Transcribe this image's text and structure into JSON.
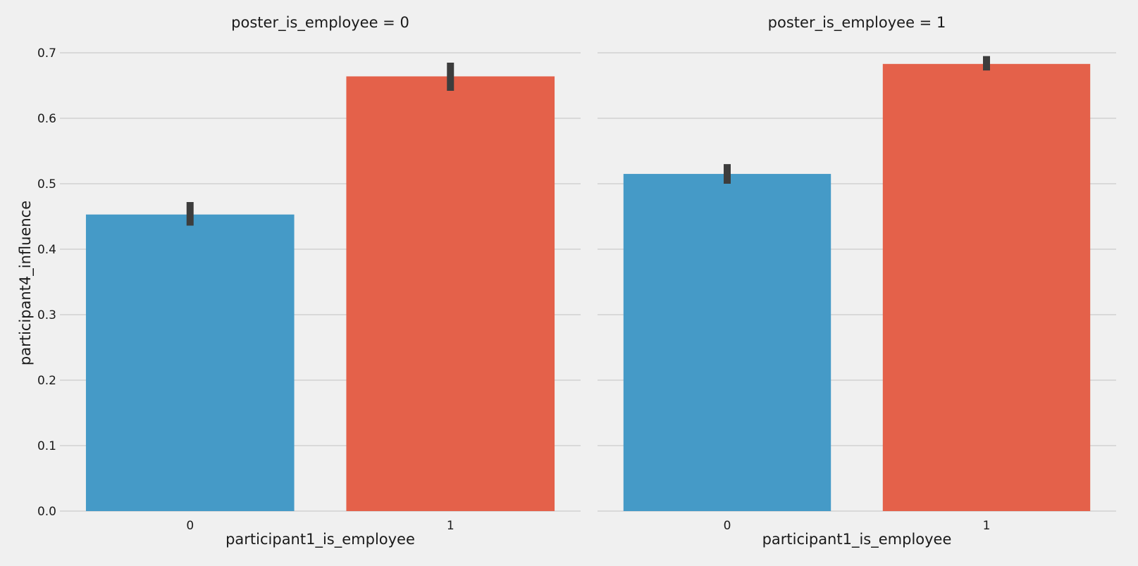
{
  "chart_data": {
    "type": "bar",
    "ylabel": "participant4_influence",
    "ylim": [
      0,
      0.7
    ],
    "yticks": [
      "0.0",
      "0.1",
      "0.2",
      "0.3",
      "0.4",
      "0.5",
      "0.6",
      "0.7"
    ],
    "ytick_values": [
      0.0,
      0.1,
      0.2,
      0.3,
      0.4,
      0.5,
      0.6,
      0.7
    ],
    "grid": true,
    "colors": {
      "background": "#f0f0f0",
      "bar_0": "#459ac7",
      "bar_1": "#e4614a",
      "grid": "#cbcbcb",
      "error_bar": "#3d3d3d"
    },
    "panels": [
      {
        "title": "poster_is_employee = 0",
        "xlabel": "participant1_is_employee",
        "categories": [
          "0",
          "1"
        ],
        "values": [
          0.453,
          0.664
        ],
        "ci_low": [
          0.436,
          0.642
        ],
        "ci_high": [
          0.472,
          0.685
        ]
      },
      {
        "title": "poster_is_employee = 1",
        "xlabel": "participant1_is_employee",
        "categories": [
          "0",
          "1"
        ],
        "values": [
          0.515,
          0.683
        ],
        "ci_low": [
          0.5,
          0.673
        ],
        "ci_high": [
          0.53,
          0.695
        ]
      }
    ]
  }
}
